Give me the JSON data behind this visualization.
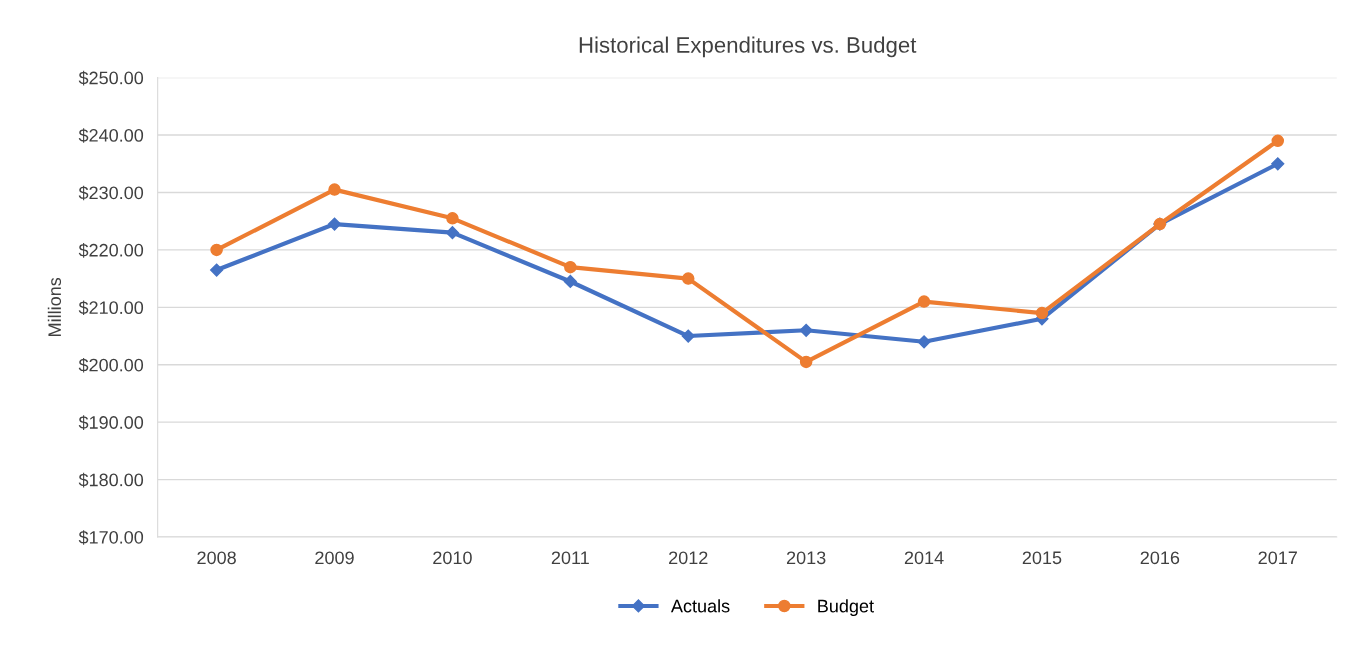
{
  "chart_data": {
    "type": "line",
    "title": "Historical Expenditures vs. Budget",
    "ylabel": "Millions",
    "categories": [
      "2008",
      "2009",
      "2010",
      "2011",
      "2012",
      "2013",
      "2014",
      "2015",
      "2016",
      "2017"
    ],
    "series": [
      {
        "name": "Actuals",
        "color": "#4472c4",
        "marker": "diamond",
        "values": [
          216.5,
          224.5,
          223,
          214.5,
          205,
          206,
          204,
          208,
          224.5,
          235
        ]
      },
      {
        "name": "Budget",
        "color": "#ed7d31",
        "marker": "circle",
        "values": [
          220,
          230.5,
          225.5,
          217,
          215,
          200.5,
          211,
          209,
          224.5,
          239
        ]
      }
    ],
    "ylim": [
      170,
      250
    ],
    "yticks": [
      {
        "value": 170,
        "label": "$170.00"
      },
      {
        "value": 180,
        "label": "$180.00"
      },
      {
        "value": 190,
        "label": "$190.00"
      },
      {
        "value": 200,
        "label": "$200.00"
      },
      {
        "value": 210,
        "label": "$210.00"
      },
      {
        "value": 220,
        "label": "$220.00"
      },
      {
        "value": 230,
        "label": "$230.00"
      },
      {
        "value": 240,
        "label": "$240.00"
      },
      {
        "value": 250,
        "label": "$250.00"
      }
    ],
    "grid": "y",
    "legend": "bottom",
    "line_style": "solid"
  }
}
